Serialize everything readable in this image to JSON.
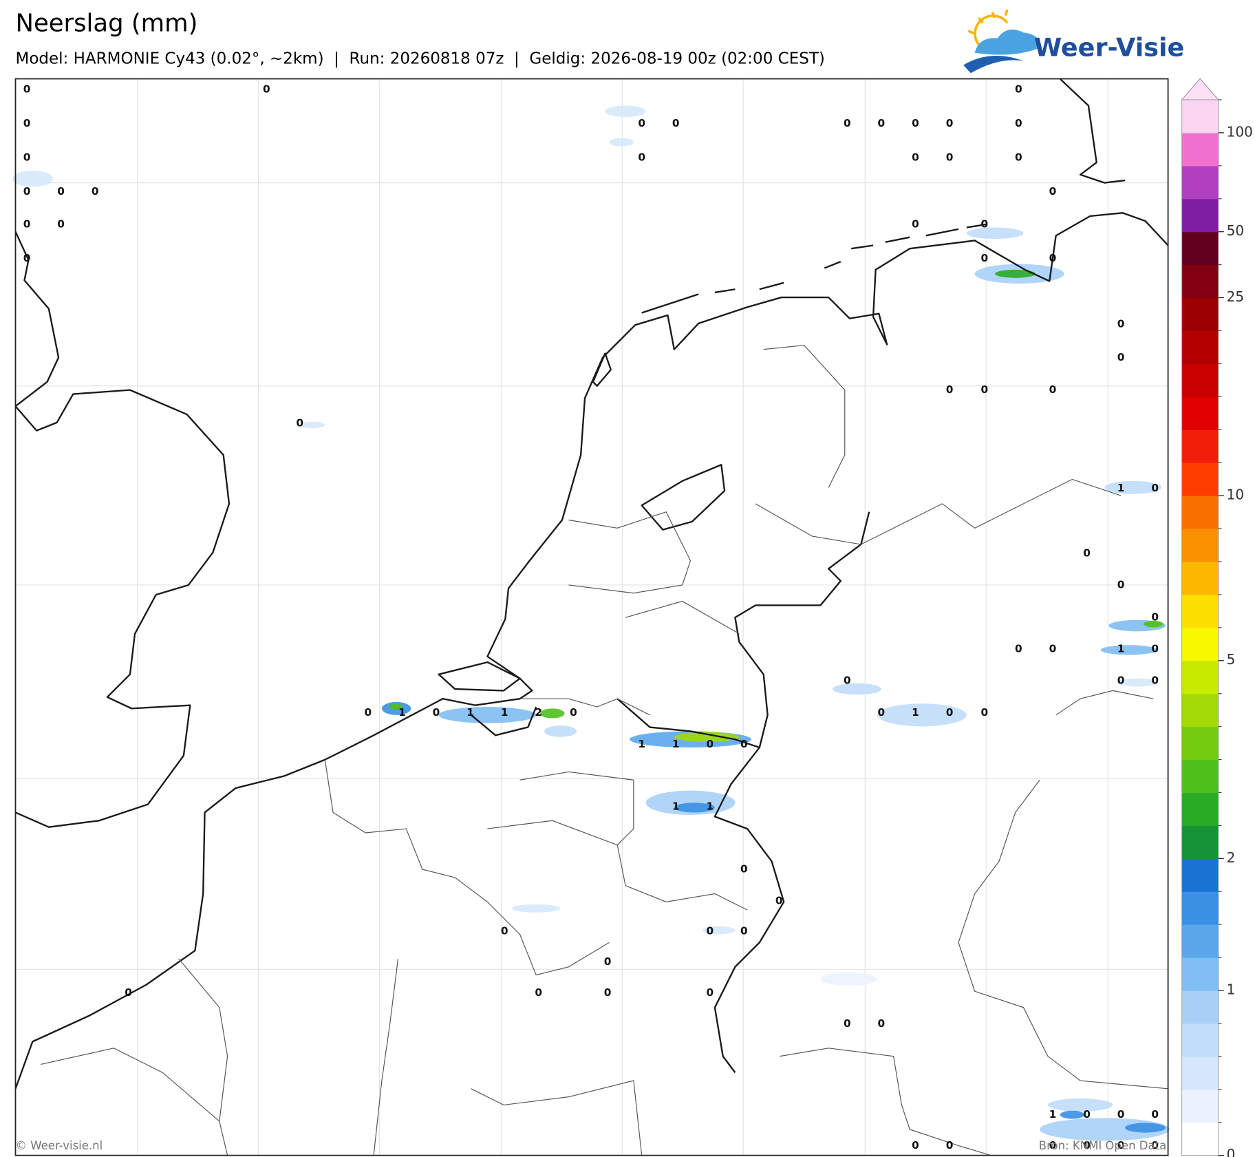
{
  "header": {
    "title": "Neerslag (mm)",
    "subtitle": "Model: HARMONIE Cy43 (0.02°, ~2km)  |  Run: 20260818 07z  |  Geldig: 2026-08-19 00z (02:00 CEST)",
    "logo": "Weer-Visie"
  },
  "map": {
    "labels": [
      0,
      0,
      0,
      0,
      0,
      0,
      0,
      0,
      0,
      0,
      0,
      0,
      0,
      0,
      0,
      0,
      0,
      0,
      0,
      0,
      0,
      0,
      0,
      0,
      0,
      0,
      0,
      0,
      0,
      0,
      0,
      0,
      0,
      1,
      0,
      0,
      0,
      0,
      0,
      0,
      1,
      0,
      0,
      0,
      0,
      0,
      1,
      0,
      1,
      1,
      2,
      0,
      0,
      1,
      0,
      0,
      1,
      1,
      0,
      0,
      1,
      1,
      0,
      0,
      0,
      0,
      0,
      0,
      0,
      0,
      0,
      0,
      0,
      0,
      1,
      0,
      0,
      0,
      0,
      0,
      0,
      0,
      0,
      0
    ]
  },
  "colorbar": {
    "ticks": [
      0,
      1,
      2,
      5,
      10,
      25,
      50,
      100
    ],
    "colors": [
      "#ffffff",
      "#eaf3fd",
      "#d5e8fb",
      "#c0ddf9",
      "#a8d0f7",
      "#80bdf2",
      "#5aa7ec",
      "#3a90e3",
      "#1a73d3",
      "#169238",
      "#2aab25",
      "#4ec01b",
      "#74cc10",
      "#a2d906",
      "#c8e900",
      "#f8f800",
      "#fde000",
      "#fcb800",
      "#fb9000",
      "#f97000",
      "#ff3c00",
      "#f21e0a",
      "#e00000",
      "#c80000",
      "#b40000",
      "#9c0000",
      "#820010",
      "#620020",
      "#7d1fa0",
      "#b040c0",
      "#f070d0",
      "#fcd5f0"
    ],
    "arrow_color": "#fde0f4"
  },
  "footer": {
    "left": "© Weer-visie.nl",
    "right": "Bron: KNMI Open Data"
  }
}
